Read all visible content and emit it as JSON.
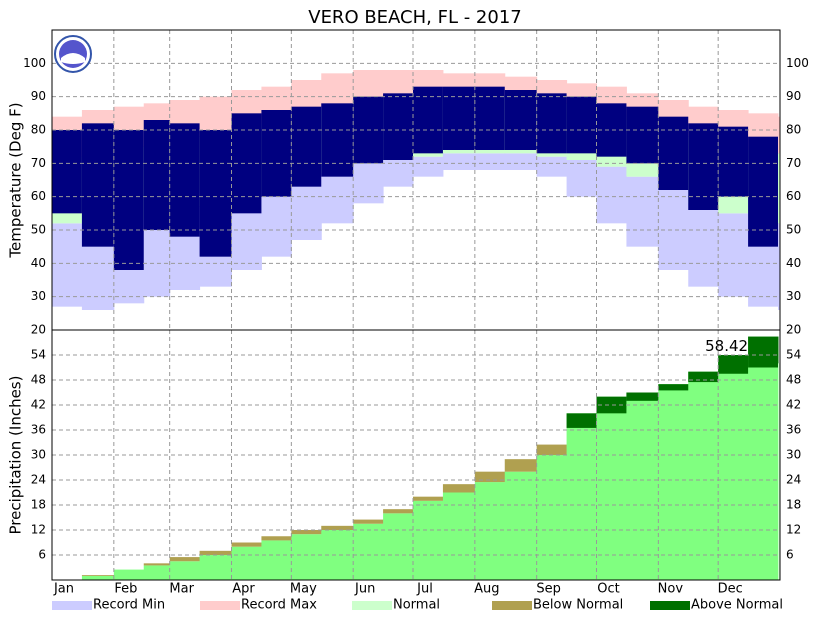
{
  "chart_data": [
    {
      "type": "range_bar",
      "title": "VERO BEACH, FL - 2017",
      "ylabel": "Temperature (Deg F)",
      "x": [
        1,
        16,
        32,
        47,
        60,
        75,
        91,
        106,
        121,
        136,
        152,
        167,
        182,
        197,
        213,
        228,
        244,
        259,
        274,
        289,
        305,
        320,
        335,
        350,
        365
      ],
      "xlim": [
        1,
        366
      ],
      "xticks": [
        {
          "value": 1,
          "label": "Jan"
        },
        {
          "value": 32,
          "label": "Feb"
        },
        {
          "value": 60,
          "label": "Mar"
        },
        {
          "value": 91,
          "label": "Apr"
        },
        {
          "value": 121,
          "label": "May"
        },
        {
          "value": 152,
          "label": "Jun"
        },
        {
          "value": 182,
          "label": "Jul"
        },
        {
          "value": 213,
          "label": "Aug"
        },
        {
          "value": 244,
          "label": "Sep"
        },
        {
          "value": 274,
          "label": "Oct"
        },
        {
          "value": 305,
          "label": "Nov"
        },
        {
          "value": 335,
          "label": "Dec"
        }
      ],
      "ylim": [
        20,
        110
      ],
      "yticks": [
        20,
        30,
        40,
        50,
        60,
        70,
        80,
        90,
        100
      ],
      "grid": true,
      "record_min": {
        "name": "Record Min",
        "color": "#ccccff",
        "values": [
          27,
          26,
          28,
          30,
          32,
          33,
          38,
          42,
          47,
          52,
          58,
          63,
          66,
          68,
          68,
          68,
          66,
          60,
          52,
          45,
          38,
          33,
          30,
          27,
          26
        ]
      },
      "record_max": {
        "name": "Record Max",
        "color": "#ffcccc",
        "values": [
          84,
          86,
          87,
          88,
          89,
          90,
          92,
          93,
          95,
          97,
          98,
          98,
          98,
          97,
          97,
          96,
          95,
          94,
          93,
          91,
          89,
          87,
          86,
          85,
          84
        ]
      },
      "normal": {
        "name": "Normal",
        "color": "#ccffcc",
        "low": [
          52,
          51,
          52,
          53,
          55,
          57,
          60,
          62,
          64,
          67,
          70,
          71,
          72,
          73,
          73,
          73,
          72,
          71,
          69,
          66,
          62,
          58,
          55,
          53,
          52
        ],
        "high": [
          72,
          72,
          73,
          75,
          76,
          78,
          80,
          82,
          84,
          86,
          88,
          89,
          90,
          91,
          91,
          90,
          89,
          88,
          86,
          84,
          81,
          78,
          76,
          74,
          73
        ]
      },
      "observed": {
        "color": "#000080",
        "low": [
          55,
          45,
          38,
          50,
          48,
          42,
          55,
          60,
          63,
          66,
          70,
          71,
          73,
          74,
          74,
          74,
          73,
          73,
          72,
          70,
          62,
          56,
          60,
          45,
          null
        ],
        "high": [
          80,
          82,
          80,
          83,
          82,
          80,
          85,
          86,
          87,
          88,
          90,
          91,
          93,
          93,
          93,
          92,
          91,
          90,
          88,
          87,
          84,
          82,
          81,
          78,
          null
        ]
      }
    },
    {
      "type": "cumulative_area",
      "ylabel": "Precipitation (Inches)",
      "x": [
        1,
        16,
        32,
        47,
        60,
        75,
        91,
        106,
        121,
        136,
        152,
        167,
        182,
        197,
        213,
        228,
        244,
        259,
        274,
        289,
        305,
        320,
        335,
        350,
        365
      ],
      "xlim": [
        1,
        366
      ],
      "ylim": [
        0,
        60
      ],
      "yticks": [
        6,
        12,
        18,
        24,
        30,
        36,
        42,
        48,
        54
      ],
      "grid": true,
      "observed": {
        "color": "#80ff80",
        "values": [
          0,
          1.0,
          2.5,
          3.5,
          4.5,
          6,
          8,
          9.5,
          11,
          12,
          13.5,
          16,
          19,
          21,
          23.5,
          26,
          30,
          40,
          44,
          45,
          47,
          50,
          54,
          58.42,
          null
        ]
      },
      "normal": {
        "color": "#ccffcc",
        "values": [
          0,
          1.2,
          2.5,
          4,
          5.5,
          7,
          9,
          10.5,
          12,
          13,
          14.5,
          17,
          20,
          23,
          26,
          29,
          32.5,
          36.5,
          40,
          43,
          45.5,
          47.5,
          49.5,
          51,
          52
        ]
      },
      "below_normal": {
        "name": "Below Normal",
        "color": "#b0a050"
      },
      "above_normal": {
        "name": "Above Normal",
        "color": "#007000"
      },
      "annotation": "58.42"
    }
  ]
}
